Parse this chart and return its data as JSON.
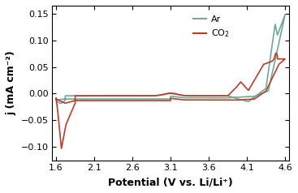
{
  "title": "",
  "xlabel": "Potential (V vs. Li/Li⁺)",
  "ylabel": "j (mA cm⁻²)",
  "xlim": [
    1.55,
    4.65
  ],
  "ylim": [
    -0.125,
    0.165
  ],
  "xticks": [
    1.6,
    2.1,
    2.6,
    3.1,
    3.6,
    4.1,
    4.6
  ],
  "yticks": [
    -0.1,
    -0.05,
    0.0,
    0.05,
    0.1,
    0.15
  ],
  "ar_color": "#6aaa96",
  "co2_color": "#c0392b",
  "legend_labels": [
    "Ar",
    "CO₂"
  ],
  "figsize": [
    3.67,
    2.38
  ],
  "dpi": 100
}
